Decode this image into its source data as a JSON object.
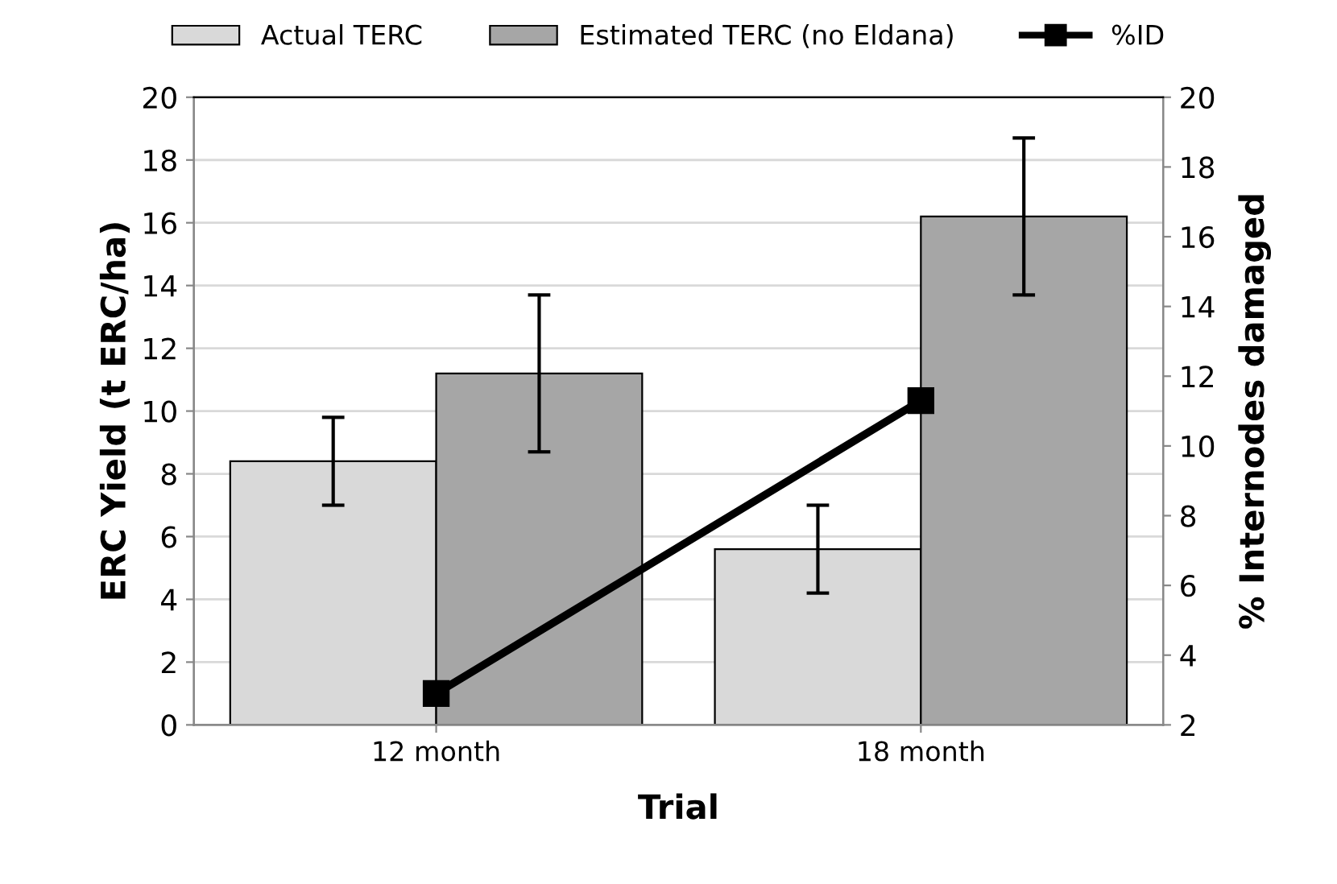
{
  "chart_data": {
    "type": "bar",
    "xlabel": "Trial",
    "ylabel": "ERC Yield (t ERC/ha)",
    "y2label": "% Internodes damaged",
    "categories": [
      "12 month",
      "18 month"
    ],
    "series": [
      {
        "name": "Actual TERC",
        "color": "#d9d9d9",
        "values": [
          8.4,
          5.6
        ],
        "errors": [
          1.4,
          1.4
        ]
      },
      {
        "name": "Estimated TERC (no Eldana)",
        "color": "#a6a6a6",
        "values": [
          11.2,
          16.2
        ],
        "errors": [
          2.5,
          2.5
        ]
      },
      {
        "name": "%ID",
        "type": "line",
        "axis": "y2",
        "color": "#000000",
        "values": [
          2.9,
          11.3
        ],
        "marker": "square",
        "line_style": "solid"
      }
    ],
    "ylim": [
      0,
      20
    ],
    "yticks": [
      0,
      2,
      4,
      6,
      8,
      10,
      12,
      14,
      16,
      18,
      20
    ],
    "y2lim": [
      2,
      20
    ],
    "y2ticks": [
      2,
      4,
      6,
      8,
      10,
      12,
      14,
      16,
      18,
      20
    ],
    "grid": "y",
    "legend": "top"
  }
}
